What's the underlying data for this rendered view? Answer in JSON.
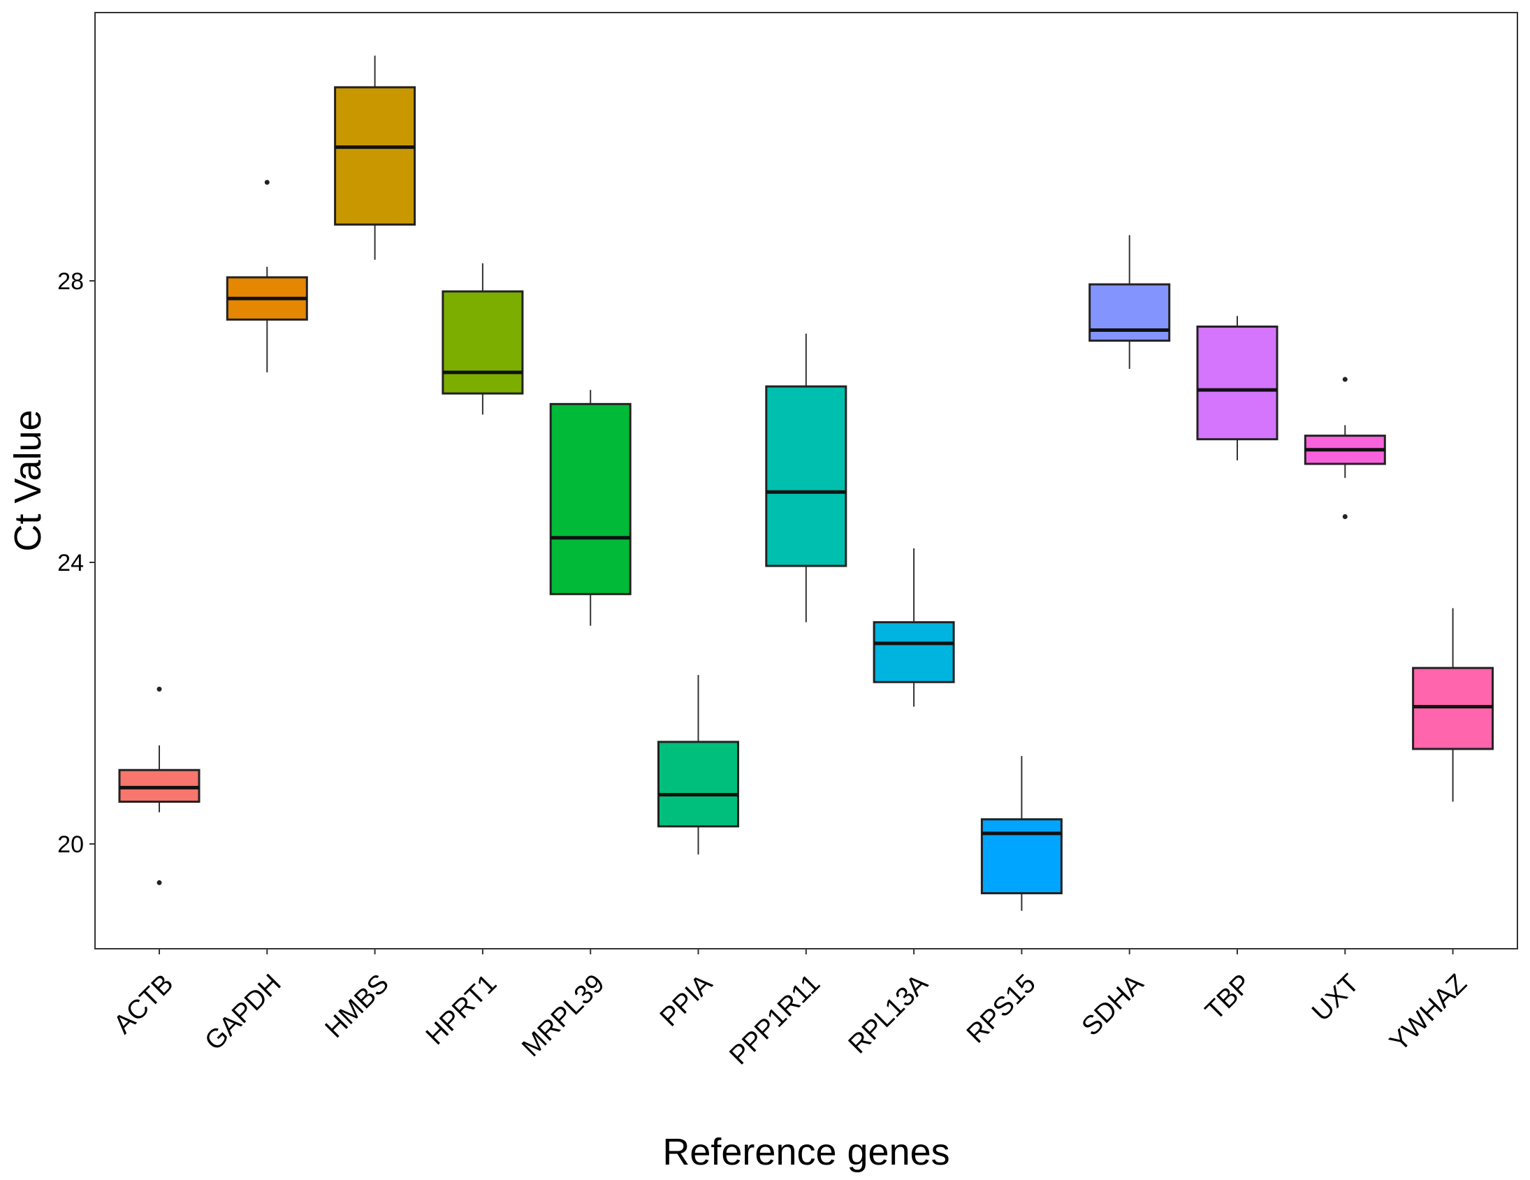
{
  "chart_data": {
    "type": "boxplot",
    "title": "",
    "xlabel": "Reference genes",
    "ylabel": "Ct Value",
    "ylim": [
      18.5,
      31.8
    ],
    "yticks": [
      20,
      24,
      28
    ],
    "grid": false,
    "categories": [
      "ACTB",
      "GAPDH",
      "HMBS",
      "HPRT1",
      "MRPL39",
      "PPIA",
      "PPP1R11",
      "RPL13A",
      "RPS15",
      "SDHA",
      "TBP",
      "UXT",
      "YWHAZ"
    ],
    "series": [
      {
        "name": "ACTB",
        "color": "#F8766D",
        "min": 20.45,
        "q1": 20.6,
        "median": 20.8,
        "q3": 21.05,
        "max": 21.4,
        "outliers": [
          22.2,
          19.45
        ]
      },
      {
        "name": "GAPDH",
        "color": "#E58700",
        "min": 26.7,
        "q1": 27.45,
        "median": 27.75,
        "q3": 28.05,
        "max": 28.2,
        "outliers": [
          29.4
        ]
      },
      {
        "name": "HMBS",
        "color": "#C99800",
        "min": 28.3,
        "q1": 28.8,
        "median": 29.9,
        "q3": 30.75,
        "max": 31.2,
        "outliers": []
      },
      {
        "name": "HPRT1",
        "color": "#7CAE00",
        "min": 26.1,
        "q1": 26.4,
        "median": 26.7,
        "q3": 27.85,
        "max": 28.25,
        "outliers": []
      },
      {
        "name": "MRPL39",
        "color": "#00BA38",
        "min": 23.1,
        "q1": 23.55,
        "median": 24.35,
        "q3": 26.25,
        "max": 26.45,
        "outliers": []
      },
      {
        "name": "PPIA",
        "color": "#00BF7D",
        "min": 19.85,
        "q1": 20.25,
        "median": 20.7,
        "q3": 21.45,
        "max": 22.4,
        "outliers": []
      },
      {
        "name": "PPP1R11",
        "color": "#00BFAE",
        "min": 23.15,
        "q1": 23.95,
        "median": 25.0,
        "q3": 26.5,
        "max": 27.25,
        "outliers": []
      },
      {
        "name": "RPL13A",
        "color": "#00B4E0",
        "min": 21.95,
        "q1": 22.3,
        "median": 22.85,
        "q3": 23.15,
        "max": 24.2,
        "outliers": []
      },
      {
        "name": "RPS15",
        "color": "#00A5FF",
        "min": 19.05,
        "q1": 19.3,
        "median": 20.15,
        "q3": 20.35,
        "max": 21.25,
        "outliers": []
      },
      {
        "name": "SDHA",
        "color": "#8494FF",
        "min": 26.75,
        "q1": 27.15,
        "median": 27.3,
        "q3": 27.95,
        "max": 28.65,
        "outliers": []
      },
      {
        "name": "TBP",
        "color": "#D575FE",
        "min": 25.45,
        "q1": 25.75,
        "median": 26.45,
        "q3": 27.35,
        "max": 27.5,
        "outliers": []
      },
      {
        "name": "UXT",
        "color": "#F962DD",
        "min": 25.2,
        "q1": 25.4,
        "median": 25.6,
        "q3": 25.8,
        "max": 25.95,
        "outliers": [
          26.6,
          24.65
        ]
      },
      {
        "name": "YWHAZ",
        "color": "#FF65AC",
        "min": 20.6,
        "q1": 21.35,
        "median": 21.95,
        "q3": 22.5,
        "max": 23.35,
        "outliers": []
      }
    ]
  }
}
